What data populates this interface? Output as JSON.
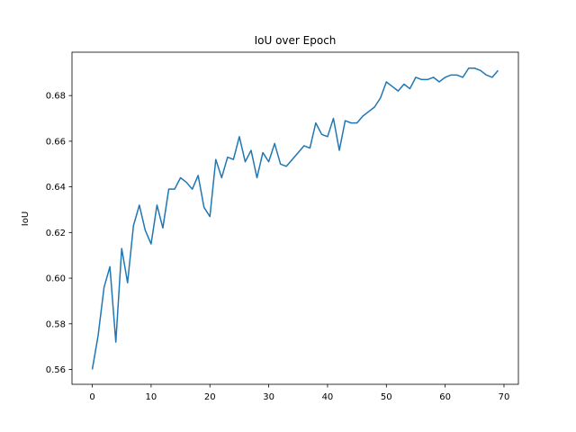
{
  "chart_data": {
    "type": "line",
    "title": "IoU over Epoch",
    "xlabel": "",
    "ylabel": "IoU",
    "xlim": [
      -3.45,
      72.45
    ],
    "ylim": [
      0.5535,
      0.699
    ],
    "xticks": [
      0,
      10,
      20,
      30,
      40,
      50,
      60,
      70
    ],
    "yticks": [
      0.56,
      0.58,
      0.6,
      0.62,
      0.64,
      0.66,
      0.68
    ],
    "ytick_labels": [
      "0.56",
      "0.58",
      "0.60",
      "0.62",
      "0.64",
      "0.66",
      "0.68"
    ],
    "grid": false,
    "line_color": "#1f77b4",
    "series": [
      {
        "x": [
          0,
          1,
          2,
          3,
          4,
          5,
          6,
          7,
          8,
          9,
          10,
          11,
          12,
          13,
          14,
          15,
          16,
          17,
          18,
          19,
          20,
          21,
          22,
          23,
          24,
          25,
          26,
          27,
          28,
          29,
          30,
          31,
          32,
          33,
          34,
          35,
          36,
          37,
          38,
          39,
          40,
          41,
          42,
          43,
          44,
          45,
          46,
          47,
          48,
          49,
          50,
          51,
          52,
          53,
          54,
          55,
          56,
          57,
          58,
          59,
          60,
          61,
          62,
          63,
          64,
          65,
          66,
          67,
          68,
          69
        ],
        "values": [
          0.56,
          0.575,
          0.596,
          0.605,
          0.572,
          0.613,
          0.598,
          0.623,
          0.632,
          0.621,
          0.615,
          0.632,
          0.622,
          0.639,
          0.639,
          0.644,
          0.642,
          0.639,
          0.645,
          0.631,
          0.627,
          0.652,
          0.644,
          0.653,
          0.652,
          0.662,
          0.651,
          0.656,
          0.644,
          0.655,
          0.651,
          0.659,
          0.65,
          0.649,
          0.652,
          0.655,
          0.658,
          0.657,
          0.668,
          0.663,
          0.662,
          0.67,
          0.656,
          0.669,
          0.668,
          0.668,
          0.671,
          0.673,
          0.675,
          0.679,
          0.686,
          0.684,
          0.682,
          0.685,
          0.683,
          0.688,
          0.687,
          0.687,
          0.688,
          0.686,
          0.688,
          0.689,
          0.689,
          0.688,
          0.692,
          0.692,
          0.691,
          0.689,
          0.688,
          0.691
        ]
      }
    ]
  }
}
